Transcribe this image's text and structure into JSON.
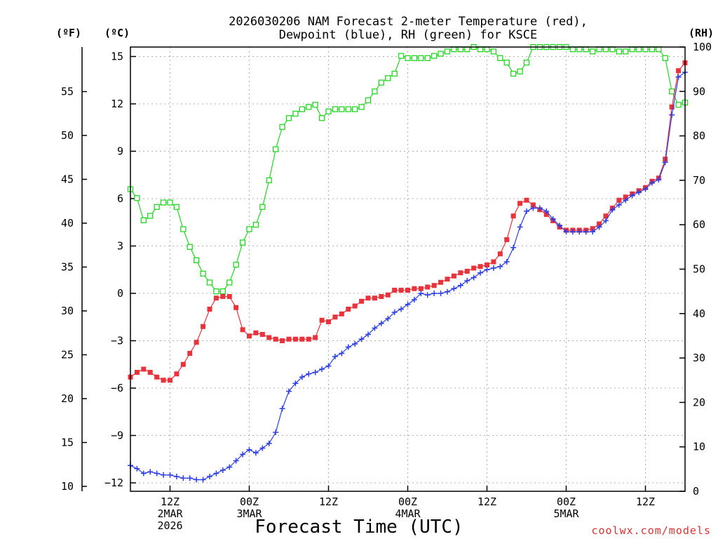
{
  "chart_data": {
    "type": "line",
    "title_lines": [
      "2026030206 NAM Forecast 2-meter Temperature (red),",
      "Dewpoint (blue), RH (green) for KSCE"
    ],
    "left_axis_f": {
      "label": "(ºF)",
      "ticks": [
        10,
        15,
        20,
        25,
        30,
        35,
        40,
        45,
        50,
        55
      ]
    },
    "left_axis_c": {
      "label": "(ºC)",
      "ticks": [
        -12,
        -9,
        -6,
        -3,
        0,
        3,
        6,
        9,
        12,
        15
      ],
      "ylim": [
        -12.2,
        15.6
      ]
    },
    "right_axis_rh": {
      "label": "(RH)",
      "ticks": [
        0,
        10,
        20,
        30,
        40,
        50,
        60,
        70,
        80,
        90,
        100
      ],
      "ylim": [
        0,
        100
      ]
    },
    "x_axis": {
      "label": "Forecast Time (UTC)",
      "xlim_hours": [
        0,
        84
      ],
      "ticks": [
        {
          "hour": 6,
          "line1": "12Z",
          "line2": "2MAR",
          "line3": "2026"
        },
        {
          "hour": 18,
          "line1": "00Z",
          "line2": "3MAR",
          "line3": ""
        },
        {
          "hour": 30,
          "line1": "12Z",
          "line2": "",
          "line3": ""
        },
        {
          "hour": 42,
          "line1": "00Z",
          "line2": "4MAR",
          "line3": ""
        },
        {
          "hour": 54,
          "line1": "12Z",
          "line2": "",
          "line3": ""
        },
        {
          "hour": 66,
          "line1": "00Z",
          "line2": "5MAR",
          "line3": ""
        },
        {
          "hour": 78,
          "line1": "12Z",
          "line2": "",
          "line3": ""
        }
      ]
    },
    "grid": true,
    "series": [
      {
        "name": "Temperature",
        "color": "#e8323c",
        "marker": "filled-square",
        "unit": "C",
        "x": [
          0,
          1,
          2,
          3,
          4,
          5,
          6,
          7,
          8,
          9,
          10,
          11,
          12,
          13,
          14,
          15,
          16,
          17,
          18,
          19,
          20,
          21,
          22,
          23,
          24,
          25,
          26,
          27,
          28,
          29,
          30,
          31,
          32,
          33,
          34,
          35,
          36,
          37,
          38,
          39,
          40,
          41,
          42,
          43,
          44,
          45,
          46,
          47,
          48,
          49,
          50,
          51,
          52,
          53,
          54,
          55,
          56,
          57,
          58,
          59,
          60,
          61,
          62,
          63,
          64,
          65,
          66,
          67,
          68,
          69,
          70,
          71,
          72,
          73,
          74,
          75,
          76,
          77,
          78,
          79,
          80,
          81,
          82,
          83,
          84
        ],
        "values": [
          -5.3,
          -5.0,
          -4.8,
          -5.0,
          -5.3,
          -5.5,
          -5.5,
          -5.1,
          -4.5,
          -3.8,
          -3.1,
          -2.1,
          -1.0,
          -0.3,
          -0.2,
          -0.2,
          -0.9,
          -2.3,
          -2.7,
          -2.5,
          -2.6,
          -2.8,
          -2.9,
          -3.0,
          -2.9,
          -2.9,
          -2.9,
          -2.9,
          -2.8,
          -1.7,
          -1.8,
          -1.5,
          -1.3,
          -1.0,
          -0.8,
          -0.5,
          -0.3,
          -0.3,
          -0.2,
          -0.1,
          0.2,
          0.2,
          0.2,
          0.3,
          0.3,
          0.4,
          0.5,
          0.7,
          0.9,
          1.1,
          1.3,
          1.4,
          1.6,
          1.7,
          1.8,
          2.0,
          2.5,
          3.4,
          4.9,
          5.7,
          5.9,
          5.6,
          5.3,
          5.0,
          4.6,
          4.2,
          4.0,
          4.0,
          4.0,
          4.0,
          4.1,
          4.4,
          4.9,
          5.4,
          5.9,
          6.1,
          6.3,
          6.5,
          6.7,
          7.1,
          7.3,
          8.5,
          11.8,
          14.1,
          14.6
        ]
      },
      {
        "name": "Dewpoint",
        "color": "#2d3ee8",
        "marker": "plus",
        "unit": "C",
        "x": [
          0,
          1,
          2,
          3,
          4,
          5,
          6,
          7,
          8,
          9,
          10,
          11,
          12,
          13,
          14,
          15,
          16,
          17,
          18,
          19,
          20,
          21,
          22,
          23,
          24,
          25,
          26,
          27,
          28,
          29,
          30,
          31,
          32,
          33,
          34,
          35,
          36,
          37,
          38,
          39,
          40,
          41,
          42,
          43,
          44,
          45,
          46,
          47,
          48,
          49,
          50,
          51,
          52,
          53,
          54,
          55,
          56,
          57,
          58,
          59,
          60,
          61,
          62,
          63,
          64,
          65,
          66,
          67,
          68,
          69,
          70,
          71,
          72,
          73,
          74,
          75,
          76,
          77,
          78,
          79,
          80,
          81,
          82,
          83,
          84
        ],
        "values": [
          -10.9,
          -11.1,
          -11.4,
          -11.3,
          -11.4,
          -11.5,
          -11.5,
          -11.6,
          -11.7,
          -11.7,
          -11.8,
          -11.8,
          -11.6,
          -11.4,
          -11.2,
          -11.0,
          -10.6,
          -10.2,
          -9.9,
          -10.1,
          -9.8,
          -9.5,
          -8.8,
          -7.3,
          -6.2,
          -5.7,
          -5.3,
          -5.1,
          -5.0,
          -4.8,
          -4.6,
          -4.0,
          -3.8,
          -3.4,
          -3.2,
          -2.9,
          -2.6,
          -2.2,
          -1.9,
          -1.6,
          -1.2,
          -1.0,
          -0.7,
          -0.4,
          0.0,
          -0.1,
          0.0,
          0.0,
          0.1,
          0.3,
          0.5,
          0.8,
          1.0,
          1.3,
          1.5,
          1.6,
          1.7,
          2.0,
          2.9,
          4.2,
          5.2,
          5.4,
          5.4,
          5.2,
          4.7,
          4.3,
          3.9,
          3.9,
          3.9,
          3.9,
          3.9,
          4.2,
          4.6,
          5.3,
          5.6,
          5.9,
          6.2,
          6.4,
          6.6,
          7.0,
          7.2,
          8.3,
          11.3,
          13.7,
          14.0
        ]
      },
      {
        "name": "RH",
        "color": "#23d823",
        "marker": "open-square",
        "unit": "%",
        "axis": "right",
        "x": [
          0,
          1,
          2,
          3,
          4,
          5,
          6,
          7,
          8,
          9,
          10,
          11,
          12,
          13,
          14,
          15,
          16,
          17,
          18,
          19,
          20,
          21,
          22,
          23,
          24,
          25,
          26,
          27,
          28,
          29,
          30,
          31,
          32,
          33,
          34,
          35,
          36,
          37,
          38,
          39,
          40,
          41,
          42,
          43,
          44,
          45,
          46,
          47,
          48,
          49,
          50,
          51,
          52,
          53,
          54,
          55,
          56,
          57,
          58,
          59,
          60,
          61,
          62,
          63,
          64,
          65,
          66,
          67,
          68,
          69,
          70,
          71,
          72,
          73,
          74,
          75,
          76,
          77,
          78,
          79,
          80,
          81,
          82,
          83,
          84
        ],
        "values": [
          68,
          66,
          61,
          62,
          64,
          65,
          65,
          64,
          59,
          55,
          52,
          49,
          47,
          45,
          45,
          47,
          51,
          56,
          59,
          60,
          64,
          70,
          77,
          82,
          84,
          85,
          86,
          86.5,
          87,
          84,
          85.5,
          86,
          86,
          86,
          86,
          86.5,
          88,
          90,
          92,
          93,
          94,
          98,
          97.5,
          97.5,
          97.5,
          97.5,
          98,
          98.5,
          99,
          99.5,
          99.5,
          99.5,
          100,
          99.5,
          99.5,
          99,
          97.5,
          96.5,
          94,
          94.5,
          96.5,
          100,
          100,
          100,
          100,
          100,
          100,
          99.5,
          99.5,
          99.5,
          99,
          99.5,
          99.5,
          99.5,
          99,
          99,
          99.5,
          99.5,
          99.5,
          99.5,
          99.5,
          97.5,
          90,
          87,
          87.5
        ]
      }
    ],
    "xlabel": "Forecast Time (UTC)",
    "credit": "coolwx.com/models"
  }
}
